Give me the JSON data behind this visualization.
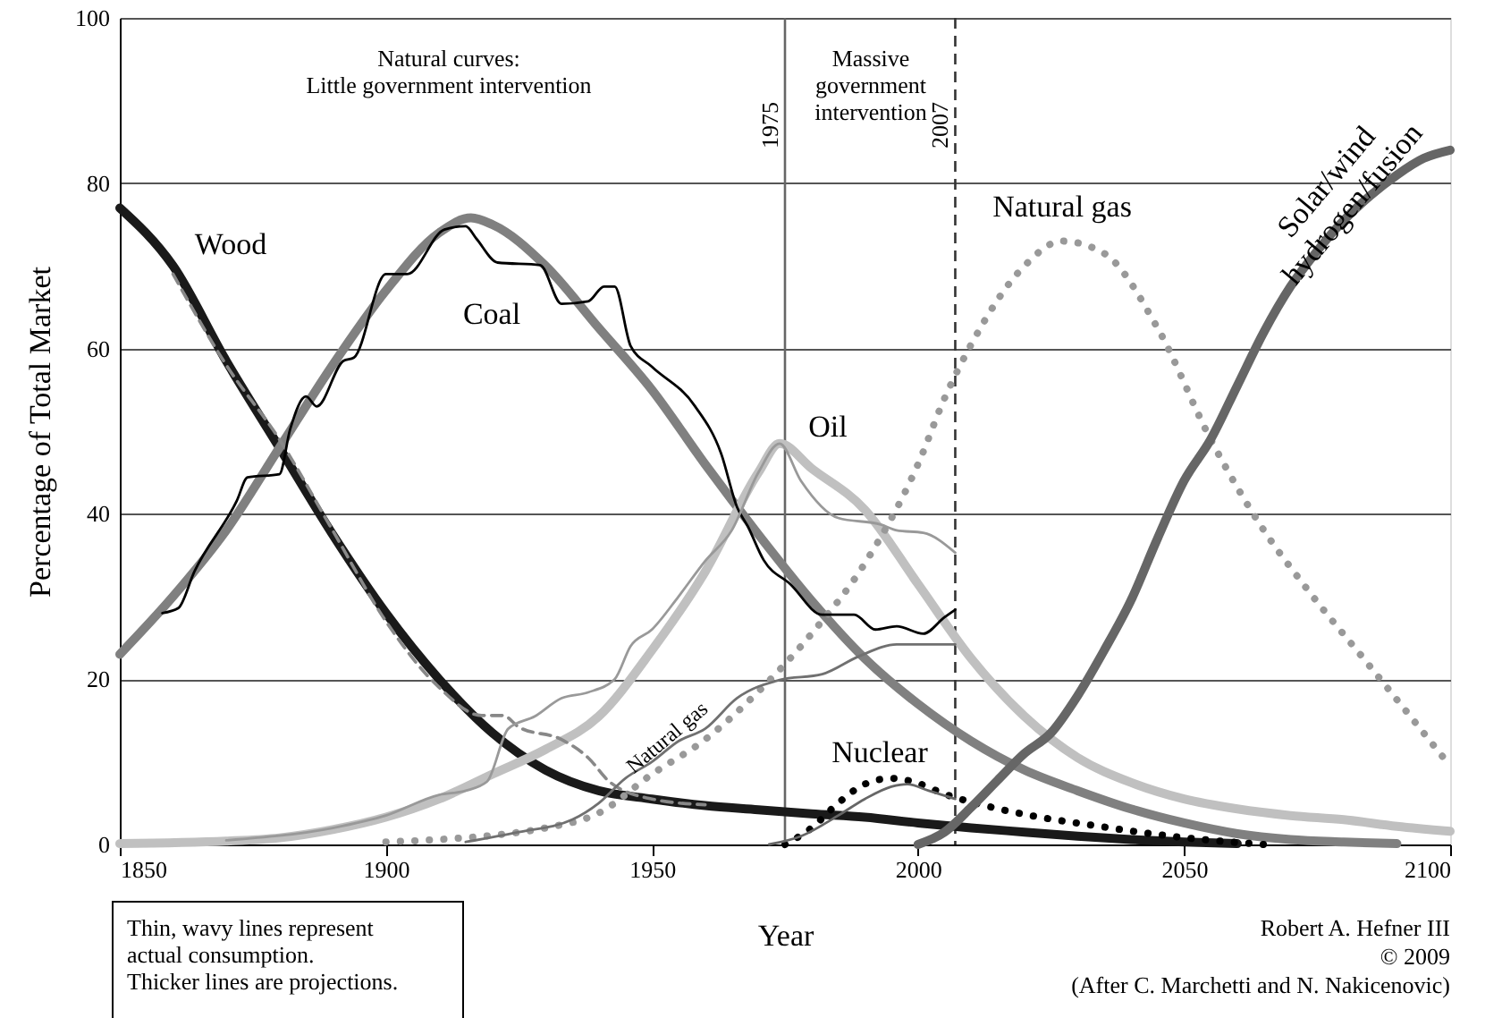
{
  "chart_data": {
    "type": "line",
    "xlabel": "Year",
    "ylabel": "Percentage of Total Market",
    "xlim": [
      1850,
      2100
    ],
    "xticks": [
      1850,
      1900,
      1950,
      2000,
      2050,
      2100
    ],
    "ylim": [
      0,
      100
    ],
    "yticks": [
      0,
      20,
      40,
      60,
      80,
      100
    ],
    "grid": "y",
    "series": [
      {
        "color": "#1a1a1a",
        "line_style": "solid",
        "x": [
          1850,
          1860,
          1870,
          1880,
          1890,
          1900,
          1910,
          1920,
          1930,
          1940,
          1950,
          1960,
          1970,
          1980,
          1990,
          2000,
          2010,
          2020,
          2030,
          2040,
          2050,
          2060
        ],
        "values": [
          77,
          70,
          58.5,
          48,
          37.5,
          28,
          20,
          13.5,
          9,
          6.5,
          5.5,
          4.7,
          4.2,
          3.7,
          3.3,
          2.6,
          2.0,
          1.5,
          1.0,
          0.6,
          0.3,
          0.1
        ]
      },
      {
        "color": "#808080",
        "line_style": "solid",
        "x": [
          1850,
          1860,
          1870,
          1880,
          1890,
          1900,
          1910,
          1916,
          1920,
          1930,
          1940,
          1950,
          1960,
          1970,
          1980,
          1990,
          2000,
          2010,
          2020,
          2030,
          2040,
          2050,
          2060,
          2070,
          2080,
          2090
        ],
        "values": [
          23,
          30,
          38,
          48,
          58,
          67,
          74,
          75.8,
          75,
          70,
          62.5,
          55,
          46,
          37.5,
          29.5,
          22.5,
          17,
          12.5,
          9,
          6.5,
          4.3,
          2.6,
          1.3,
          0.6,
          0.3,
          0.1
        ]
      },
      {
        "color": "#c0c0c0",
        "line_style": "solid",
        "x": [
          1850,
          1870,
          1880,
          1890,
          1900,
          1910,
          1920,
          1930,
          1940,
          1950,
          1960,
          1970,
          1974,
          1980,
          1990,
          2000,
          2010,
          2020,
          2030,
          2040,
          2050,
          2060,
          2070,
          2080,
          2090,
          2100
        ],
        "values": [
          0.1,
          0.4,
          0.8,
          1.8,
          3.3,
          5.5,
          8.5,
          11.5,
          15.5,
          23.5,
          33,
          45,
          48.5,
          45.5,
          40.5,
          31.5,
          22.5,
          15.5,
          10.5,
          7.5,
          5.5,
          4.3,
          3.5,
          3,
          2.2,
          1.6
        ]
      },
      {
        "color": "#999999",
        "line_style": "dotted",
        "x": [
          1900,
          1910,
          1920,
          1930,
          1940,
          1950,
          1960,
          1970,
          1980,
          1990,
          2000,
          2005,
          2010,
          2020,
          2027,
          2035,
          2045,
          2055,
          2065,
          2073,
          2085,
          2100
        ],
        "values": [
          0.3,
          0.6,
          1.1,
          2.0,
          3.8,
          8.5,
          12.7,
          18.5,
          25.5,
          34,
          46,
          54,
          60.5,
          70,
          73,
          71.5,
          62.5,
          49,
          38,
          31,
          21.5,
          9.5
        ]
      },
      {
        "color": "#000000",
        "line_style": "dotted",
        "x": [
          1975,
          1980,
          1985,
          1990,
          1995,
          2000,
          2005,
          2012,
          2022,
          2033,
          2045,
          2055,
          2065
        ],
        "values": [
          0,
          2,
          5,
          7.3,
          8,
          7.4,
          6.1,
          4.8,
          3.4,
          2.3,
          1.2,
          0.5,
          0
        ]
      },
      {
        "color": "#666666",
        "line_style": "solid",
        "x": [
          2000,
          2005,
          2010,
          2015,
          2020,
          2025,
          2030,
          2035,
          2040,
          2045,
          2050,
          2055,
          2060,
          2065,
          2070,
          2075,
          2080,
          2085,
          2090,
          2095,
          2100
        ],
        "values": [
          0,
          1.5,
          4.5,
          7.8,
          11,
          13.5,
          18,
          23.5,
          29.5,
          37,
          44,
          49,
          55.5,
          62,
          67.5,
          71.8,
          75.5,
          78.5,
          81,
          83,
          84
        ]
      },
      {
        "color": "#888888",
        "line_style": "dashed",
        "x": [
          1860,
          1870,
          1880,
          1890,
          1900,
          1910,
          1918,
          1922,
          1925,
          1933,
          1938,
          1942,
          1950,
          1960
        ],
        "values": [
          69,
          58,
          49,
          38,
          27,
          19,
          15.6,
          15.6,
          14.2,
          12.7,
          10.5,
          7.6,
          5.5,
          4.8
        ]
      },
      {
        "color": "#000000",
        "line_style": "solid",
        "x": [
          1858,
          1861,
          1864,
          1872,
          1874,
          1880,
          1882,
          1885,
          1887,
          1892,
          1894,
          1900,
          1904,
          1911,
          1915,
          1917,
          1921,
          1929,
          1933,
          1938,
          1941,
          1943,
          1946,
          1950,
          1958,
          1963,
          1966,
          1968,
          1971,
          1976,
          1982,
          1988,
          1992,
          1996,
          2001,
          2005,
          2007
        ],
        "values": [
          28,
          28.6,
          33,
          41.6,
          44.4,
          44.8,
          50.2,
          54.2,
          53,
          58.5,
          58.9,
          69,
          69,
          74.4,
          74.8,
          73.3,
          70.4,
          70.1,
          65.4,
          65.7,
          67.5,
          67.5,
          60.3,
          57.8,
          53.1,
          47.3,
          40.8,
          38.5,
          34.4,
          31.5,
          27.8,
          27.8,
          26,
          26.4,
          25.5,
          27.5,
          28.4
        ]
      },
      {
        "color": "#999999",
        "line_style": "solid",
        "x": [
          1870,
          1890,
          1900,
          1910,
          1915,
          1919,
          1923,
          1928,
          1933,
          1938,
          1943,
          1946,
          1950,
          1955,
          1960,
          1965,
          1970,
          1974,
          1978,
          1985,
          1993,
          1996,
          2001,
          2007
        ],
        "values": [
          0.5,
          2,
          3.5,
          6,
          6.5,
          7.6,
          14,
          15.5,
          17.7,
          18.4,
          20,
          24,
          26,
          30,
          34.3,
          38,
          45,
          48.5,
          44,
          39.5,
          38.7,
          38,
          37.7,
          35.3
        ]
      },
      {
        "color": "#707070",
        "line_style": "solid",
        "x": [
          1915,
          1925,
          1935,
          1940,
          1945,
          1950,
          1955,
          1960,
          1966,
          1974,
          1982,
          1989,
          1996,
          2007
        ],
        "values": [
          0.3,
          1.5,
          3,
          5,
          8,
          10,
          12.5,
          14,
          17.7,
          19.9,
          20.6,
          22.8,
          24.2,
          24.2
        ]
      },
      {
        "color": "#666666",
        "line_style": "solid",
        "x": [
          1972,
          1978,
          1985,
          1990,
          1995,
          1998,
          2002,
          2007
        ],
        "values": [
          0,
          1,
          3.5,
          5.5,
          7,
          7.3,
          6.5,
          5.5
        ]
      }
    ],
    "ref_lines": [
      {
        "axis": "x",
        "value": 1975,
        "label": "1975",
        "color": "#666666",
        "line_style": "solid"
      },
      {
        "axis": "x",
        "value": 2007,
        "label": "2007",
        "color": "#333333",
        "line_style": "dashed"
      }
    ],
    "annotations": [
      "Wood",
      "Coal",
      "Oil",
      "Natural gas",
      "Solar/wind\nhydrogen/fusion",
      "Natural gas",
      "Nuclear",
      "Natural curves:\nLittle government intervention",
      "Massive\ngovernment\nintervention",
      "Thin, wavy lines represent\nactual consumption.\nThicker lines are projections.",
      "Robert A. Hefner III",
      "© 2009",
      "(After C. Marchetti and N. Nakicenovic)"
    ]
  }
}
